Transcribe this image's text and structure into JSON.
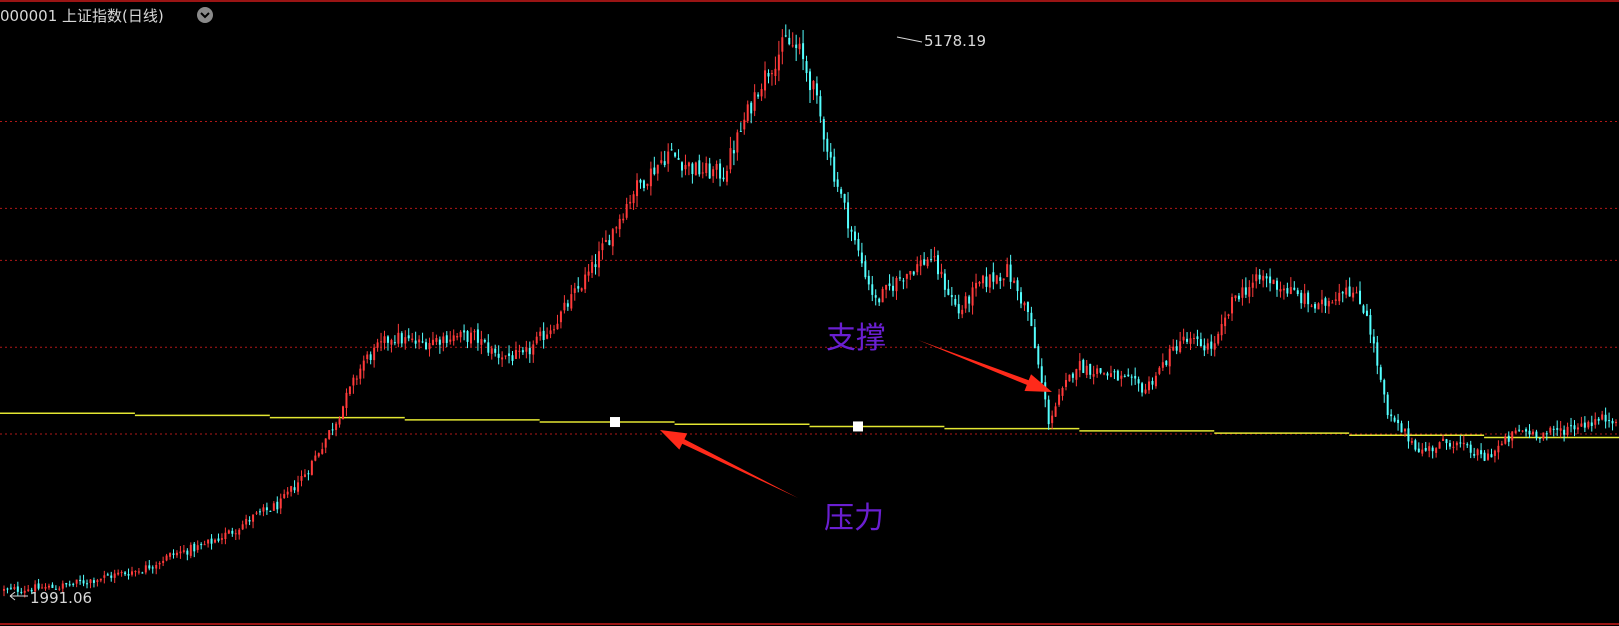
{
  "header": {
    "title": "000001 上证指数(日线)",
    "menu_icon": "chevron-down-circle-icon"
  },
  "colors": {
    "background": "#000000",
    "up": "#ff3b3b",
    "down": "#54ffff",
    "grid": "#b01818",
    "border": "#9a1414",
    "horizontal_line": "#e3e632",
    "marker": "#ffffff",
    "annotation_text": "#6a1fd1",
    "annotation_arrow": "#ff2a1a"
  },
  "chart_data": {
    "type": "candlestick",
    "title": "000001 上证指数(日线)",
    "xlabel": "",
    "ylabel": "",
    "ylim": [
      1800,
      5400
    ],
    "grid": true,
    "high": {
      "value": 5178.19,
      "label": "5178.19"
    },
    "low": {
      "value": 1991.06,
      "label": "1991.06"
    },
    "horizontal_line": {
      "name": "",
      "start": 3020,
      "end": 2880
    },
    "annotations": [
      {
        "text": "支撑",
        "meaning": "support"
      },
      {
        "text": "压力",
        "meaning": "resistance"
      }
    ],
    "anchors": [
      [
        0,
        2000
      ],
      [
        16,
        2020
      ],
      [
        30,
        2080
      ],
      [
        40,
        2120
      ],
      [
        48,
        2200
      ],
      [
        58,
        2260
      ],
      [
        66,
        2340
      ],
      [
        72,
        2420
      ],
      [
        80,
        2500
      ],
      [
        88,
        2700
      ],
      [
        96,
        2980
      ],
      [
        104,
        3320
      ],
      [
        112,
        3460
      ],
      [
        120,
        3420
      ],
      [
        128,
        3460
      ],
      [
        136,
        3460
      ],
      [
        142,
        3360
      ],
      [
        150,
        3340
      ],
      [
        160,
        3560
      ],
      [
        170,
        3850
      ],
      [
        182,
        4300
      ],
      [
        192,
        4520
      ],
      [
        200,
        4420
      ],
      [
        208,
        4400
      ],
      [
        218,
        4900
      ],
      [
        226,
        5160
      ],
      [
        230,
        5100
      ],
      [
        234,
        4880
      ],
      [
        240,
        4400
      ],
      [
        246,
        4000
      ],
      [
        252,
        3660
      ],
      [
        260,
        3820
      ],
      [
        268,
        3920
      ],
      [
        276,
        3600
      ],
      [
        282,
        3760
      ],
      [
        290,
        3840
      ],
      [
        296,
        3600
      ],
      [
        302,
        2980
      ],
      [
        310,
        3300
      ],
      [
        320,
        3240
      ],
      [
        330,
        3160
      ],
      [
        340,
        3440
      ],
      [
        350,
        3400
      ],
      [
        356,
        3700
      ],
      [
        364,
        3800
      ],
      [
        372,
        3720
      ],
      [
        380,
        3620
      ],
      [
        388,
        3760
      ],
      [
        394,
        3600
      ],
      [
        400,
        3000
      ],
      [
        410,
        2800
      ],
      [
        418,
        2860
      ],
      [
        428,
        2760
      ],
      [
        438,
        2920
      ],
      [
        446,
        2900
      ],
      [
        456,
        2960
      ],
      [
        466,
        3000
      ]
    ]
  }
}
